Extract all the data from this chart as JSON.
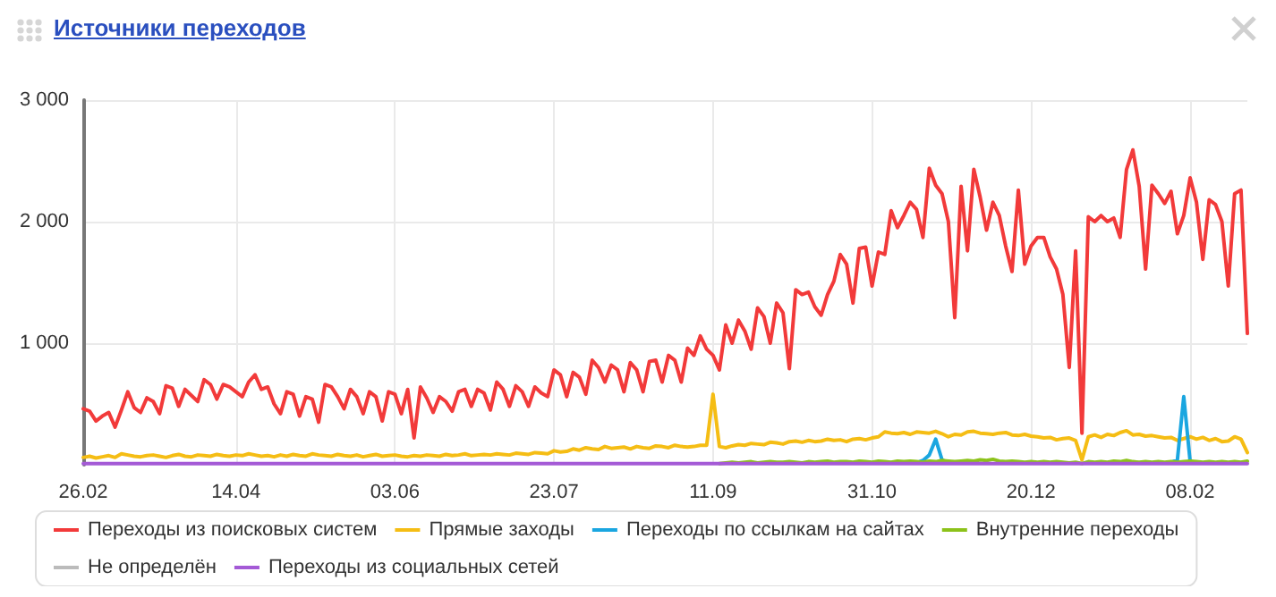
{
  "chart_data": {
    "type": "line",
    "title": "Источники переходов",
    "categories": [
      "26.02",
      null,
      null,
      null,
      null,
      null,
      null,
      null,
      null,
      null,
      null,
      null,
      null,
      null,
      null,
      null,
      null,
      null,
      null,
      null,
      null,
      null,
      null,
      null,
      "14.04",
      null,
      null,
      null,
      null,
      null,
      null,
      null,
      null,
      null,
      null,
      null,
      null,
      null,
      null,
      null,
      null,
      null,
      null,
      null,
      null,
      null,
      null,
      null,
      null,
      "03.06",
      null,
      null,
      null,
      null,
      null,
      null,
      null,
      null,
      null,
      null,
      null,
      null,
      null,
      null,
      null,
      null,
      null,
      null,
      null,
      null,
      null,
      null,
      null,
      null,
      "23.07",
      null,
      null,
      null,
      null,
      null,
      null,
      null,
      null,
      null,
      null,
      null,
      null,
      null,
      null,
      null,
      null,
      null,
      null,
      null,
      null,
      null,
      null,
      null,
      null,
      "11.09",
      null,
      null,
      null,
      null,
      null,
      null,
      null,
      null,
      null,
      null,
      null,
      null,
      null,
      null,
      null,
      null,
      null,
      null,
      null,
      null,
      null,
      null,
      null,
      null,
      "31.10",
      null,
      null,
      null,
      null,
      null,
      null,
      null,
      null,
      null,
      null,
      null,
      null,
      null,
      null,
      null,
      null,
      null,
      null,
      null,
      null,
      null,
      null,
      null,
      null,
      "20.12",
      null,
      null,
      null,
      null,
      null,
      null,
      null,
      null,
      null,
      null,
      null,
      null,
      null,
      null,
      null,
      null,
      null,
      null,
      null,
      null,
      null,
      null,
      null,
      null,
      "08.02",
      null,
      null,
      null,
      null,
      null,
      null,
      null,
      null,
      null
    ],
    "series": [
      {
        "name": "Переходы из поисковых систем",
        "color": "#f23a3a",
        "values": [
          460,
          440,
          360,
          400,
          430,
          310,
          450,
          600,
          470,
          430,
          550,
          520,
          420,
          650,
          630,
          480,
          620,
          570,
          520,
          700,
          660,
          540,
          660,
          640,
          600,
          560,
          680,
          740,
          620,
          640,
          500,
          420,
          600,
          580,
          400,
          560,
          540,
          350,
          660,
          640,
          560,
          460,
          620,
          560,
          420,
          600,
          560,
          360,
          600,
          580,
          420,
          620,
          220,
          640,
          550,
          430,
          560,
          520,
          440,
          600,
          620,
          480,
          620,
          590,
          450,
          680,
          620,
          480,
          650,
          600,
          480,
          640,
          590,
          560,
          780,
          740,
          560,
          760,
          720,
          580,
          860,
          800,
          680,
          820,
          780,
          600,
          840,
          780,
          600,
          850,
          860,
          680,
          900,
          860,
          680,
          960,
          900,
          1060,
          950,
          900,
          780,
          1150,
          1000,
          1190,
          1100,
          950,
          1290,
          1220,
          1000,
          1330,
          1250,
          790,
          1440,
          1400,
          1420,
          1300,
          1230,
          1400,
          1510,
          1730,
          1650,
          1330,
          1780,
          1790,
          1470,
          1750,
          1730,
          2090,
          1950,
          2050,
          2160,
          2100,
          1870,
          2440,
          2300,
          2230,
          2000,
          1210,
          2290,
          1760,
          2430,
          2200,
          1930,
          2160,
          2050,
          1800,
          1590,
          2260,
          1650,
          1800,
          1870,
          1870,
          1710,
          1610,
          1400,
          800,
          1760,
          260,
          2040,
          2000,
          2050,
          2000,
          2030,
          1870,
          2430,
          2590,
          2290,
          1610,
          2300,
          2230,
          2150,
          2250,
          1900,
          2050,
          2360,
          2160,
          1690,
          2180,
          2140,
          2000,
          1470,
          2230,
          2260,
          1080
        ]
      },
      {
        "name": "Прямые заходы",
        "color": "#f5bd14",
        "values": [
          60,
          70,
          55,
          65,
          75,
          60,
          90,
          80,
          70,
          65,
          75,
          80,
          70,
          60,
          75,
          85,
          70,
          65,
          80,
          75,
          70,
          85,
          75,
          70,
          80,
          75,
          90,
          80,
          70,
          75,
          65,
          80,
          70,
          85,
          75,
          70,
          90,
          80,
          75,
          70,
          85,
          75,
          70,
          80,
          65,
          75,
          85,
          70,
          75,
          80,
          70,
          65,
          75,
          70,
          80,
          75,
          70,
          85,
          75,
          80,
          90,
          75,
          80,
          85,
          80,
          90,
          85,
          80,
          95,
          90,
          85,
          100,
          95,
          90,
          115,
          105,
          110,
          130,
          120,
          140,
          130,
          125,
          150,
          135,
          140,
          145,
          130,
          150,
          140,
          135,
          155,
          150,
          140,
          160,
          150,
          145,
          150,
          160,
          160,
          580,
          150,
          140,
          155,
          165,
          160,
          175,
          170,
          165,
          185,
          180,
          170,
          190,
          195,
          185,
          200,
          190,
          195,
          210,
          200,
          205,
          190,
          210,
          215,
          205,
          220,
          230,
          270,
          260,
          255,
          265,
          250,
          270,
          265,
          260,
          275,
          255,
          230,
          250,
          245,
          270,
          275,
          260,
          255,
          250,
          260,
          265,
          245,
          240,
          250,
          235,
          230,
          220,
          225,
          205,
          215,
          220,
          200,
          40,
          230,
          245,
          225,
          250,
          240,
          265,
          280,
          245,
          250,
          235,
          240,
          230,
          220,
          225,
          200,
          215,
          230,
          210,
          225,
          200,
          215,
          190,
          195,
          230,
          210,
          100
        ]
      },
      {
        "name": "Переходы по ссылкам на сайтах",
        "color": "#1aa6e0",
        "values": [
          null,
          null,
          null,
          null,
          null,
          null,
          null,
          null,
          null,
          null,
          null,
          null,
          null,
          null,
          null,
          null,
          null,
          null,
          null,
          null,
          null,
          null,
          null,
          null,
          null,
          null,
          null,
          null,
          null,
          null,
          null,
          null,
          null,
          null,
          null,
          null,
          null,
          null,
          null,
          null,
          null,
          null,
          null,
          null,
          null,
          null,
          null,
          null,
          null,
          null,
          null,
          null,
          null,
          null,
          null,
          null,
          null,
          null,
          null,
          null,
          null,
          null,
          null,
          null,
          null,
          null,
          null,
          null,
          null,
          null,
          null,
          null,
          null,
          null,
          null,
          null,
          null,
          null,
          null,
          null,
          null,
          null,
          null,
          null,
          null,
          null,
          null,
          null,
          null,
          null,
          null,
          null,
          null,
          null,
          null,
          null,
          null,
          null,
          null,
          null,
          null,
          null,
          null,
          null,
          null,
          null,
          null,
          null,
          null,
          null,
          null,
          null,
          null,
          null,
          null,
          null,
          null,
          null,
          null,
          null,
          null,
          null,
          null,
          null,
          null,
          null,
          null,
          null,
          null,
          null,
          null,
          15,
          35,
          80,
          210,
          40,
          15,
          null,
          null,
          null,
          null,
          null,
          null,
          null,
          null,
          null,
          null,
          null,
          null,
          null,
          null,
          null,
          null,
          null,
          null,
          null,
          null,
          null,
          null,
          null,
          null,
          null,
          null,
          null,
          null,
          null,
          null,
          null,
          null,
          null,
          null,
          20,
          40,
          560,
          30,
          15,
          null,
          null,
          null,
          null,
          null,
          null,
          null,
          null
        ]
      },
      {
        "name": "Внутренние переходы",
        "color": "#8cc21a",
        "values": [
          null,
          null,
          null,
          null,
          null,
          null,
          null,
          null,
          null,
          null,
          null,
          null,
          null,
          null,
          null,
          null,
          null,
          null,
          null,
          null,
          null,
          null,
          null,
          null,
          null,
          null,
          null,
          null,
          null,
          null,
          null,
          null,
          null,
          null,
          null,
          null,
          null,
          null,
          null,
          null,
          null,
          null,
          null,
          null,
          null,
          null,
          null,
          null,
          null,
          null,
          null,
          null,
          null,
          null,
          null,
          null,
          null,
          null,
          null,
          null,
          null,
          null,
          null,
          null,
          null,
          null,
          null,
          null,
          null,
          null,
          null,
          null,
          null,
          null,
          null,
          null,
          null,
          null,
          null,
          null,
          null,
          null,
          null,
          null,
          null,
          null,
          null,
          null,
          null,
          null,
          null,
          null,
          null,
          null,
          null,
          null,
          null,
          null,
          null,
          null,
          10,
          15,
          20,
          15,
          20,
          25,
          15,
          20,
          25,
          20,
          20,
          25,
          20,
          15,
          25,
          20,
          25,
          30,
          20,
          25,
          25,
          20,
          30,
          25,
          20,
          30,
          25,
          20,
          30,
          25,
          30,
          25,
          20,
          30,
          25,
          35,
          30,
          25,
          30,
          35,
          30,
          40,
          35,
          45,
          30,
          25,
          30,
          25,
          20,
          25,
          20,
          25,
          20,
          25,
          20,
          15,
          20,
          10,
          25,
          20,
          25,
          20,
          30,
          25,
          35,
          25,
          20,
          25,
          20,
          25,
          20,
          25,
          20,
          25,
          30,
          25,
          20,
          25,
          20,
          25,
          20,
          25,
          20,
          30
        ]
      },
      {
        "name": "Не определён",
        "color": "#bbbbbb",
        "values": [
          null,
          null,
          null,
          null,
          null,
          null,
          null,
          null,
          null,
          null,
          null,
          null,
          null,
          null,
          null,
          null,
          null,
          null,
          null,
          null,
          null,
          null,
          null,
          null,
          null,
          null,
          null,
          null,
          null,
          null,
          null,
          null,
          null,
          null,
          null,
          null,
          null,
          null,
          null,
          null,
          null,
          null,
          null,
          null,
          null,
          null,
          null,
          null,
          null,
          null,
          null,
          null,
          null,
          null,
          null,
          null,
          null,
          null,
          null,
          null,
          null,
          null,
          null,
          null,
          null,
          null,
          null,
          null,
          null,
          null,
          null,
          null,
          null,
          null,
          null,
          null,
          null,
          null,
          null,
          null,
          null,
          null,
          null,
          null,
          null,
          null,
          null,
          null,
          null,
          null,
          null,
          null,
          null,
          null,
          null,
          null,
          null,
          null,
          null,
          null,
          null,
          null,
          null,
          null,
          null,
          null,
          null,
          null,
          null,
          null,
          null,
          null,
          null,
          null,
          null,
          null,
          null,
          null,
          null,
          null,
          null,
          null,
          null,
          null,
          null,
          null,
          null,
          null,
          null,
          null,
          null,
          null,
          null,
          null,
          null,
          null,
          null,
          null,
          null,
          null,
          null,
          null,
          null,
          null,
          null,
          null,
          null,
          null,
          null,
          null,
          null,
          null,
          null,
          null,
          null,
          null,
          null,
          null,
          null,
          null,
          null,
          null,
          null,
          null,
          null,
          null,
          null,
          null,
          null,
          null,
          null,
          null,
          null,
          null,
          null,
          null,
          null,
          null,
          null,
          null,
          null,
          null,
          null,
          null
        ]
      },
      {
        "name": "Переходы из социальных сетей",
        "color": "#a45ad6",
        "values": [
          10,
          10,
          10,
          10,
          10,
          10,
          10,
          10,
          10,
          10,
          10,
          10,
          10,
          10,
          10,
          10,
          10,
          10,
          10,
          10,
          10,
          10,
          10,
          10,
          10,
          10,
          10,
          10,
          10,
          10,
          10,
          10,
          10,
          10,
          10,
          10,
          10,
          10,
          10,
          10,
          10,
          10,
          10,
          10,
          10,
          10,
          10,
          10,
          10,
          10,
          10,
          10,
          10,
          10,
          10,
          10,
          10,
          10,
          10,
          10,
          10,
          10,
          10,
          10,
          10,
          10,
          10,
          10,
          10,
          10,
          10,
          10,
          10,
          10,
          10,
          10,
          10,
          10,
          10,
          10,
          10,
          10,
          10,
          10,
          10,
          10,
          10,
          10,
          10,
          10,
          10,
          10,
          10,
          10,
          10,
          10,
          10,
          10,
          10,
          10,
          10,
          10,
          10,
          10,
          10,
          10,
          10,
          10,
          10,
          10,
          10,
          10,
          10,
          10,
          10,
          10,
          10,
          10,
          10,
          10,
          10,
          10,
          10,
          10,
          10,
          10,
          10,
          10,
          10,
          10,
          10,
          10,
          10,
          10,
          10,
          10,
          10,
          10,
          10,
          10,
          10,
          10,
          10,
          10,
          10,
          10,
          10,
          10,
          10,
          10,
          10,
          10,
          10,
          10,
          10,
          10,
          10,
          10,
          10,
          10,
          10,
          10,
          10,
          10,
          10,
          10,
          10,
          10,
          10,
          10,
          10,
          10,
          10,
          10,
          10,
          10,
          10,
          10,
          10,
          10,
          10,
          10,
          10,
          10
        ]
      }
    ],
    "ylim": [
      0,
      3000
    ],
    "yticks": [
      {
        "value": 1000,
        "label": "1 000"
      },
      {
        "value": 2000,
        "label": "2 000"
      },
      {
        "value": 3000,
        "label": "3 000"
      }
    ],
    "grid": true,
    "legend": "bottom",
    "marker": "none",
    "line_style": "solid"
  }
}
